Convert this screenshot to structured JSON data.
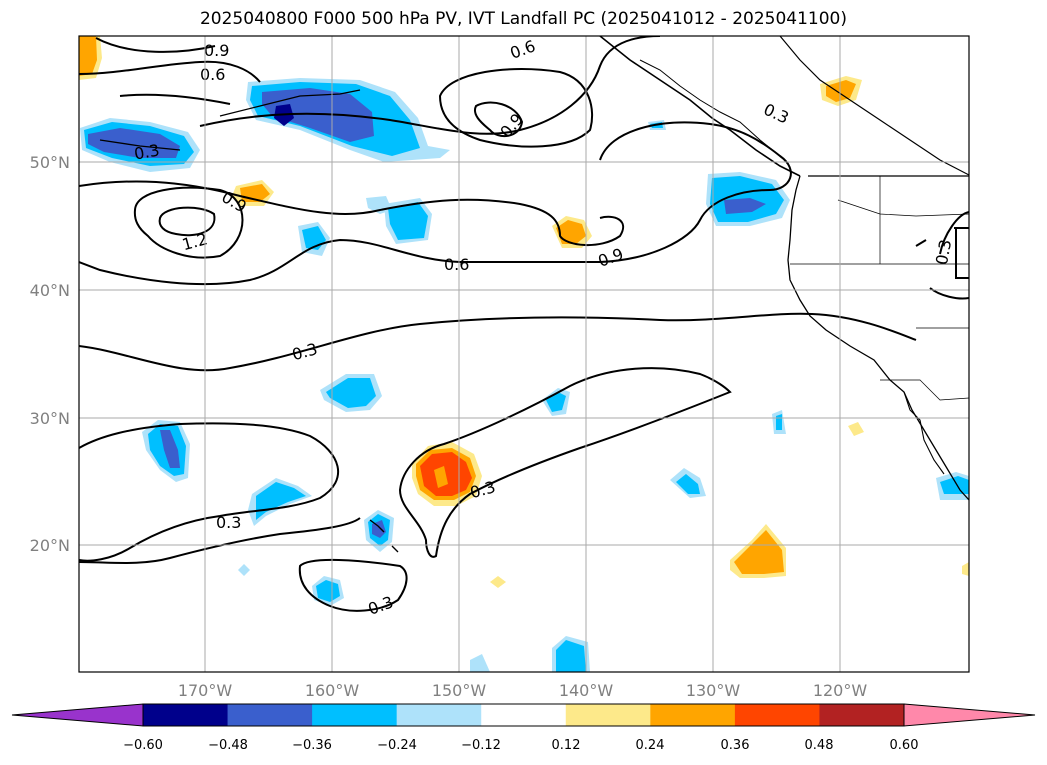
{
  "title": "2025040800 F000 500 hPa PV, IVT Landfall PC (2025041012 - 2025041100)",
  "map": {
    "lat_labels": [
      "50°N",
      "40°N",
      "30°N",
      "20°N"
    ],
    "lon_labels": [
      "170°W",
      "160°W",
      "150°W",
      "140°W",
      "130°W",
      "120°W"
    ],
    "contour_labels": [
      "0.9",
      "0.6",
      "0.6",
      "0.3",
      "0.9",
      "0.3",
      "0.9",
      "1.2",
      "0.6",
      "0.9",
      "0.3",
      "0.3",
      "0.3",
      "0.3",
      "0.3"
    ]
  },
  "colorbar": {
    "levels": [
      "−0.60",
      "−0.48",
      "−0.36",
      "−0.24",
      "−0.12",
      "0.12",
      "0.24",
      "0.36",
      "0.48",
      "0.60"
    ],
    "colors": [
      "#9933cc",
      "#00008b",
      "#3a5fcd",
      "#00bfff",
      "#aee2fa",
      "#ffffff",
      "#fde98a",
      "#ffa500",
      "#ff4500",
      "#b22222",
      "#ff88aa"
    ]
  }
}
